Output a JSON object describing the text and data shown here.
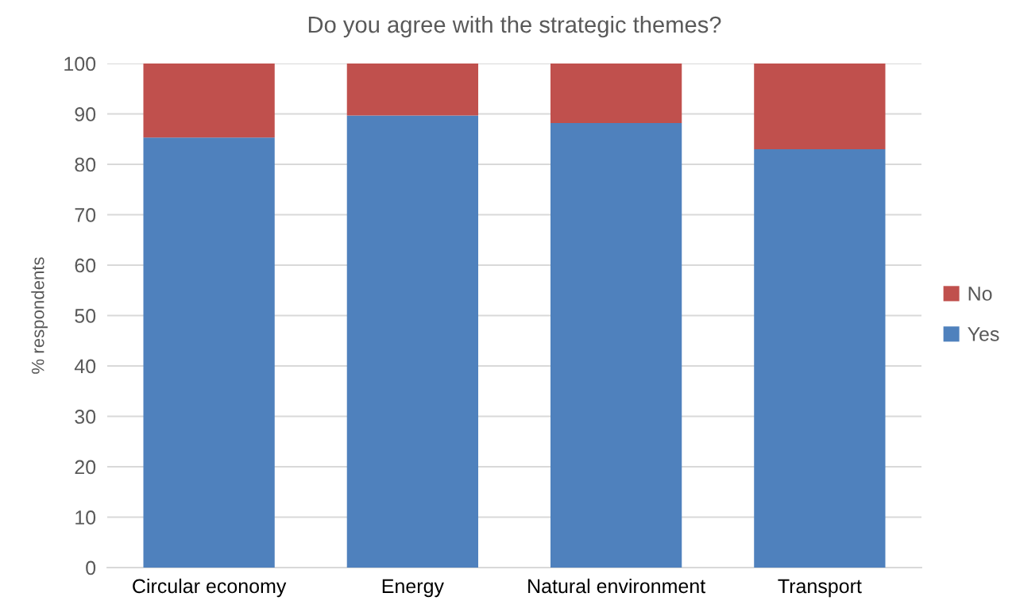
{
  "chart_data": {
    "type": "bar",
    "title": "Do you agree with the strategic themes?",
    "ylabel": "% respondents",
    "categories": [
      "Circular economy",
      "Energy",
      "Natural environment",
      "Transport"
    ],
    "series": [
      {
        "name": "Yes",
        "color": "#4f81bd",
        "values": [
          85.3,
          89.7,
          88.2,
          83.0
        ]
      },
      {
        "name": "No",
        "color": "#c0504d",
        "values": [
          14.7,
          10.3,
          11.8,
          17.0
        ]
      }
    ],
    "stacked": true,
    "ylim": [
      0,
      100
    ],
    "yticks": [
      0,
      10,
      20,
      30,
      40,
      50,
      60,
      70,
      80,
      90,
      100
    ],
    "grid": "y",
    "legend": "right"
  }
}
